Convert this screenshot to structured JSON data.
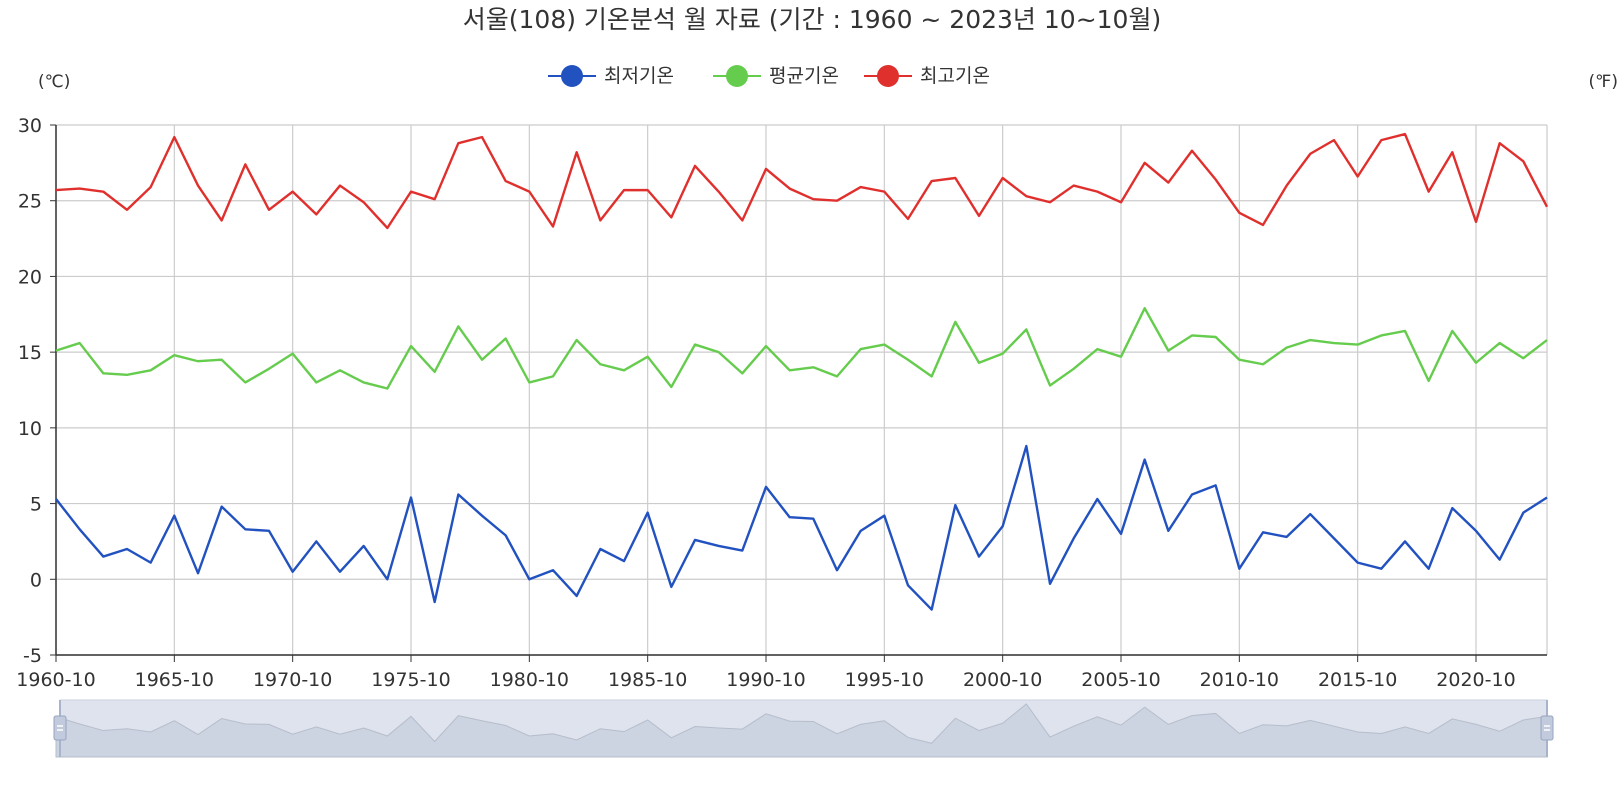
{
  "chart_data": {
    "type": "line",
    "title": "서울(108) 기온분석 월 자료 (기간 : 1960 ~ 2023년  10~10월)",
    "y_unit_left": "(℃)",
    "y_unit_right": "(℉)",
    "ylim": [
      -5,
      30
    ],
    "yticks": [
      -5,
      0,
      5,
      10,
      15,
      20,
      25,
      30
    ],
    "xlim": [
      1960,
      2023
    ],
    "xticks": [
      "1960-10",
      "1965-10",
      "1970-10",
      "1975-10",
      "1980-10",
      "1985-10",
      "1990-10",
      "1995-10",
      "2000-10",
      "2005-10",
      "2010-10",
      "2015-10",
      "2020-10"
    ],
    "grid": true,
    "legend_position": "top-center",
    "x": [
      1960,
      1961,
      1962,
      1963,
      1964,
      1965,
      1966,
      1967,
      1968,
      1969,
      1970,
      1971,
      1972,
      1973,
      1974,
      1975,
      1976,
      1977,
      1978,
      1979,
      1980,
      1981,
      1982,
      1983,
      1984,
      1985,
      1986,
      1987,
      1988,
      1989,
      1990,
      1991,
      1992,
      1993,
      1994,
      1995,
      1996,
      1997,
      1998,
      1999,
      2000,
      2001,
      2002,
      2003,
      2004,
      2005,
      2006,
      2007,
      2008,
      2009,
      2010,
      2011,
      2012,
      2013,
      2014,
      2015,
      2016,
      2017,
      2018,
      2019,
      2020,
      2021,
      2022,
      2023
    ],
    "series": [
      {
        "name": "최저기온",
        "color": "#2251c0",
        "values": [
          5.3,
          3.3,
          1.5,
          2.0,
          1.1,
          4.2,
          0.4,
          4.8,
          3.3,
          3.2,
          0.5,
          2.5,
          0.5,
          2.2,
          0.0,
          5.4,
          -1.5,
          5.6,
          4.2,
          2.9,
          0.0,
          0.6,
          -1.1,
          2.0,
          1.2,
          4.4,
          -0.5,
          2.6,
          2.2,
          1.9,
          6.1,
          4.1,
          4.0,
          0.6,
          3.2,
          4.2,
          -0.4,
          -2.0,
          4.9,
          1.5,
          3.5,
          8.8,
          -0.3,
          2.7,
          5.3,
          3.0,
          7.9,
          3.2,
          5.6,
          6.2,
          0.7,
          3.1,
          2.8,
          4.3,
          2.7,
          1.1,
          0.7,
          2.5,
          0.7,
          4.7,
          3.2,
          1.3,
          4.4,
          5.4
        ]
      },
      {
        "name": "평균기온",
        "color": "#66cc4e",
        "values": [
          15.1,
          15.6,
          13.6,
          13.5,
          13.8,
          14.8,
          14.4,
          14.5,
          13.0,
          13.9,
          14.9,
          13.0,
          13.8,
          13.0,
          12.6,
          15.4,
          13.7,
          16.7,
          14.5,
          15.9,
          13.0,
          13.4,
          15.8,
          14.2,
          13.8,
          14.7,
          12.7,
          15.5,
          15.0,
          13.6,
          15.4,
          13.8,
          14.0,
          13.4,
          15.2,
          15.5,
          14.5,
          13.4,
          17.0,
          14.3,
          14.9,
          16.5,
          12.8,
          13.9,
          15.2,
          14.7,
          17.9,
          15.1,
          16.1,
          16.0,
          14.5,
          14.2,
          15.3,
          15.8,
          15.6,
          15.5,
          16.1,
          16.4,
          13.1,
          16.4,
          14.3,
          15.6,
          14.6,
          15.8
        ]
      },
      {
        "name": "최고기온",
        "color": "#e0302d",
        "values": [
          25.7,
          25.8,
          25.6,
          24.4,
          25.9,
          29.2,
          26.0,
          23.7,
          27.4,
          24.4,
          25.6,
          24.1,
          26.0,
          24.9,
          23.2,
          25.6,
          25.1,
          28.8,
          29.2,
          26.3,
          25.6,
          23.3,
          28.2,
          23.7,
          25.7,
          25.7,
          23.9,
          27.3,
          25.6,
          23.7,
          27.1,
          25.8,
          25.1,
          25.0,
          25.9,
          25.6,
          23.8,
          26.3,
          26.5,
          24.0,
          26.5,
          25.3,
          24.9,
          26.0,
          25.6,
          24.9,
          27.5,
          26.2,
          28.3,
          26.4,
          24.2,
          23.4,
          26.0,
          28.1,
          29.0,
          26.6,
          29.0,
          29.4,
          25.6,
          28.2,
          23.6,
          28.8,
          27.6,
          24.6
        ]
      }
    ]
  }
}
